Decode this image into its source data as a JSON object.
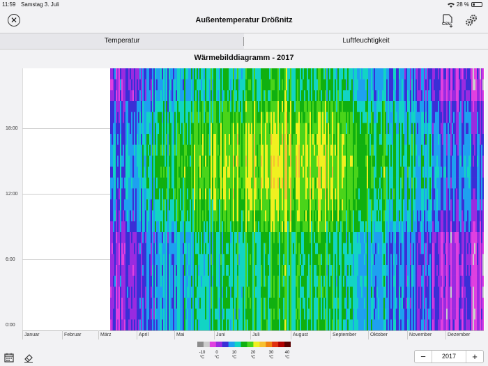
{
  "status": {
    "time": "11:59",
    "date": "Samstag 3. Juli",
    "battery": "28 %",
    "battery_fraction": 0.28
  },
  "navbar": {
    "title": "Außentemperatur Drößnitz",
    "close_icon": "close-circle-icon",
    "csv_icon": "csv-download-icon",
    "csv_label": "CSV",
    "settings_icon": "gears-icon"
  },
  "tabs": [
    {
      "label": "Temperatur",
      "selected": true
    },
    {
      "label": "Luftfeuchtigkeit",
      "selected": false
    }
  ],
  "chart_data": {
    "type": "heatmap",
    "title": "Wärmebilddiagramm - 2017",
    "y_ticks": [
      "0:00",
      "6:00",
      "12:00",
      "18:00"
    ],
    "x_ticks": [
      "Januar",
      "Februar",
      "März",
      "April",
      "Mai",
      "Juni",
      "Juli",
      "August",
      "September",
      "Oktober",
      "November",
      "Dezember"
    ],
    "data_start": "März",
    "legend": {
      "ticks": [
        "-10",
        "0",
        "10",
        "20",
        "30",
        "40"
      ],
      "unit": "°C",
      "range": [
        -15,
        45
      ]
    },
    "colors": {
      "scale": [
        "#8c8c8c",
        "#cccccc",
        "#e040e0",
        "#9a2be0",
        "#3a2fd6",
        "#1ea0f0",
        "#12d4c4",
        "#10b010",
        "#4ad41a",
        "#f0f020",
        "#f7c030",
        "#f08010",
        "#e03010",
        "#b00000",
        "#5a0000"
      ]
    }
  },
  "footer": {
    "year": "2017",
    "minus": "−",
    "plus": "+",
    "calendar_icon": "calendar-icon",
    "erase_icon": "eraser-icon"
  }
}
